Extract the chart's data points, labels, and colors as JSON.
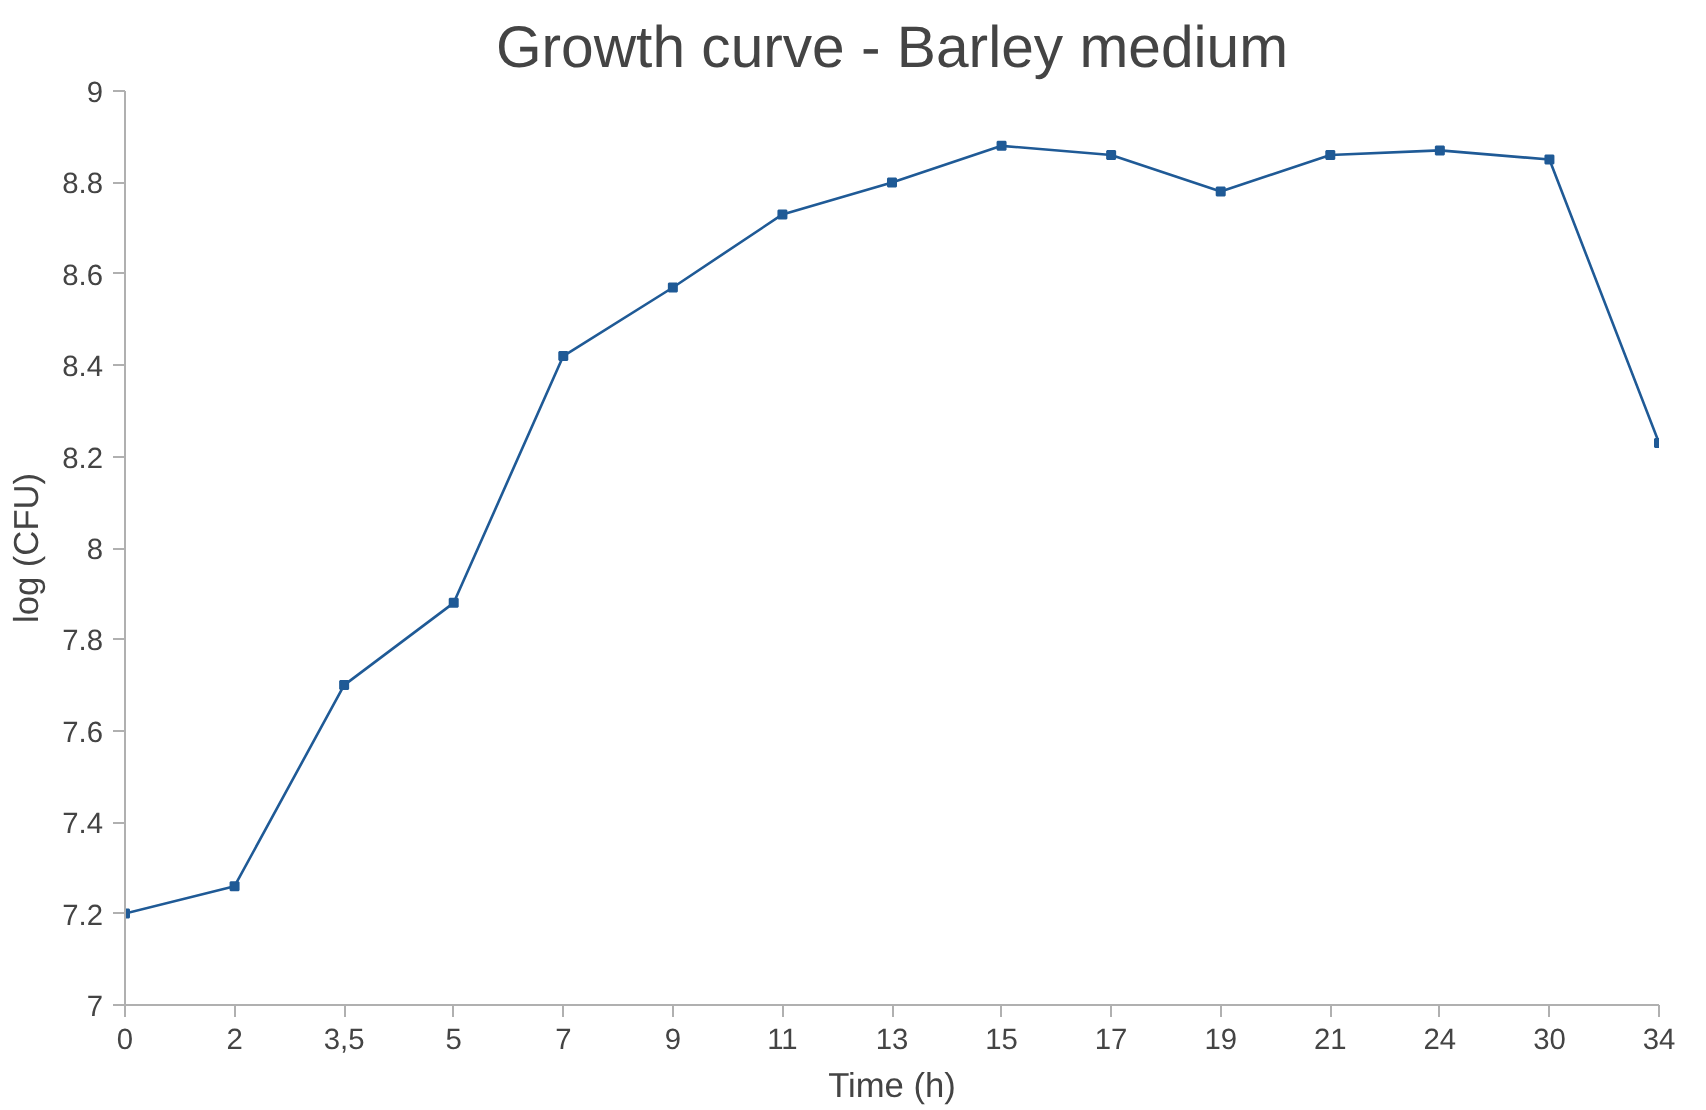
{
  "chart_data": {
    "type": "line",
    "title": "Growth curve - Barley medium",
    "xlabel": "Time (h)",
    "ylabel": "log (CFU)",
    "categories": [
      "0",
      "2",
      "3,5",
      "5",
      "7",
      "9",
      "11",
      "13",
      "15",
      "17",
      "19",
      "21",
      "24",
      "30",
      "34"
    ],
    "series": [
      {
        "color": "#1f5a96",
        "values": [
          7.2,
          7.26,
          7.7,
          7.88,
          8.42,
          8.57,
          8.73,
          8.8,
          8.88,
          8.86,
          8.78,
          8.86,
          8.87,
          8.85,
          8.23
        ]
      }
    ],
    "ylim": [
      7,
      9
    ],
    "yticks": [
      7,
      7.2,
      7.4,
      7.6,
      7.8,
      8,
      8.2,
      8.4,
      8.6,
      8.8,
      9
    ],
    "grid": false,
    "marker": "square",
    "line_style": "solid"
  }
}
